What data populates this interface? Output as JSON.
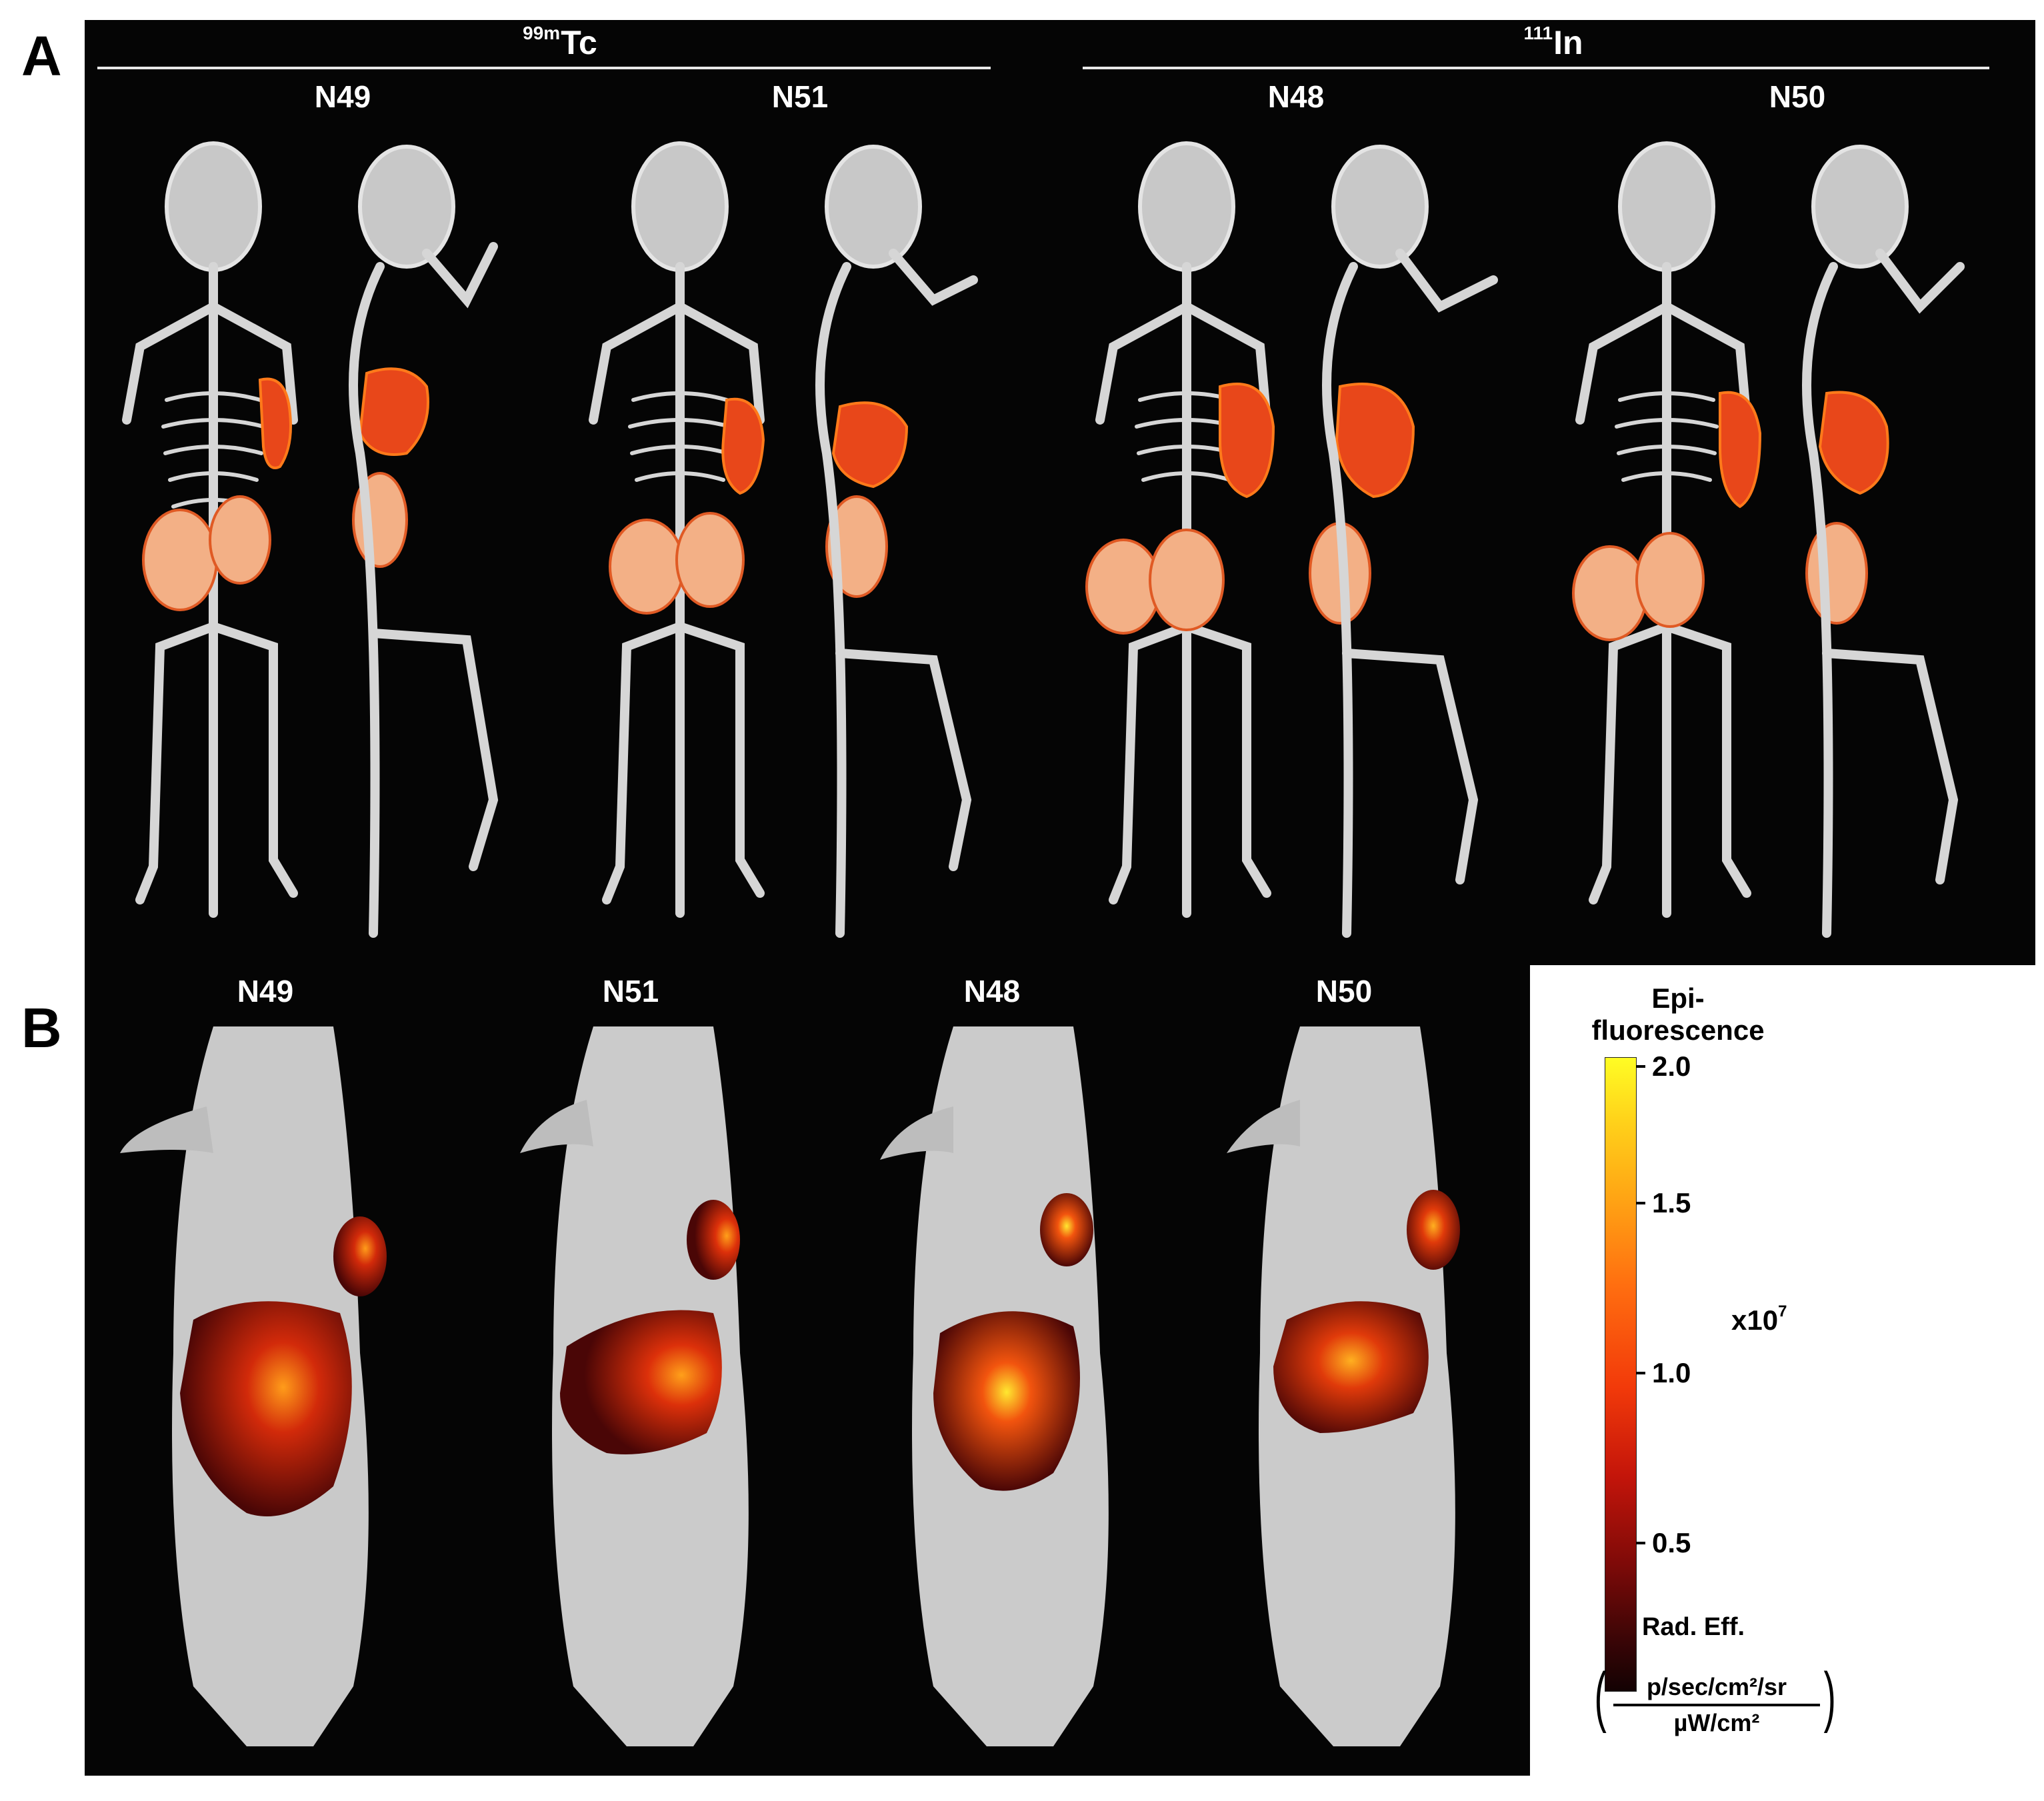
{
  "panel_a": {
    "letter": "A",
    "groups": [
      {
        "isotope_mass": "99m",
        "isotope_symbol": "Tc",
        "samples": [
          "N49",
          "N51"
        ]
      },
      {
        "isotope_mass": "111",
        "isotope_symbol": "In",
        "samples": [
          "N48",
          "N50"
        ]
      }
    ]
  },
  "panel_b": {
    "letter": "B",
    "samples": [
      "N49",
      "N51",
      "N48",
      "N50"
    ]
  },
  "legend": {
    "title_line1": "Epi-",
    "title_line2": "fluorescence",
    "ticks": [
      "2.0",
      "1.5",
      "1.0",
      "0.5"
    ],
    "scale_prefix": "x10",
    "scale_exponent": "7",
    "unit_title": "Rad. Eff.",
    "unit_numerator": "p/sec/cm²/sr",
    "unit_denominator": "µW/cm²",
    "colormap": [
      "#130203",
      "#7e0a08",
      "#f23a0a",
      "#ffa514",
      "#fffd24"
    ]
  }
}
